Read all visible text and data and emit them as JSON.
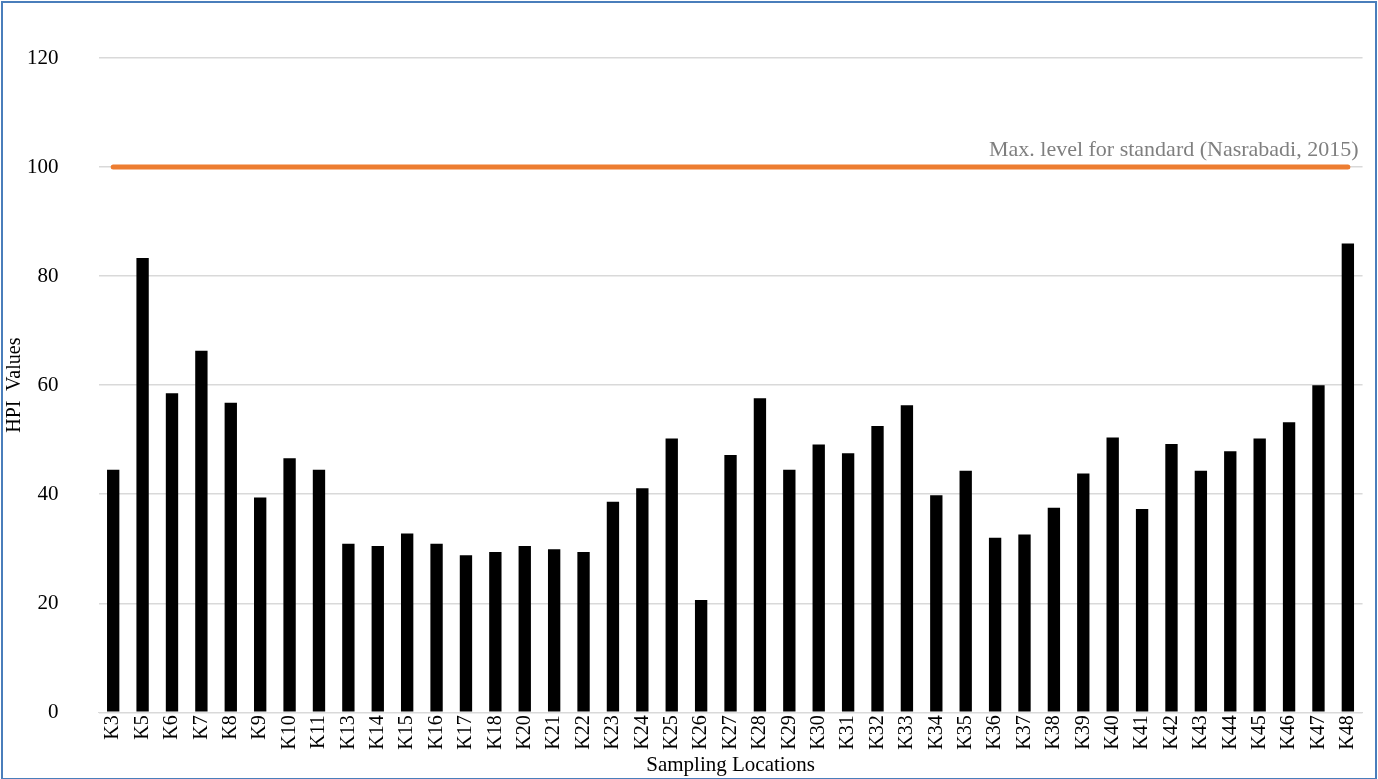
{
  "chart_data": {
    "type": "bar",
    "xlabel": "Sampling Locations",
    "ylabel": "HPI  Values",
    "categories": [
      "K3",
      "K5",
      "K6",
      "K7",
      "K8",
      "K9",
      "K10",
      "K11",
      "K13",
      "K14",
      "K15",
      "K16",
      "K17",
      "K18",
      "K20",
      "K21",
      "K22",
      "K23",
      "K24",
      "K25",
      "K26",
      "K27",
      "K28",
      "K29",
      "K30",
      "K31",
      "K32",
      "K33",
      "K34",
      "K35",
      "K36",
      "K37",
      "K38",
      "K39",
      "K40",
      "K41",
      "K42",
      "K43",
      "K44",
      "K45",
      "K46",
      "K47",
      "K48"
    ],
    "values": [
      44.5,
      83.3,
      58.5,
      66.3,
      56.8,
      39.4,
      46.6,
      44.5,
      30.9,
      30.5,
      32.8,
      30.9,
      28.8,
      29.4,
      30.5,
      29.9,
      29.4,
      38.6,
      41.1,
      50.2,
      20.6,
      47.2,
      57.6,
      44.5,
      49.1,
      47.5,
      52.5,
      56.3,
      39.8,
      44.3,
      32.0,
      32.6,
      37.5,
      43.8,
      50.4,
      37.3,
      49.2,
      44.3,
      47.9,
      50.2,
      53.2,
      60.0,
      86.0
    ],
    "color": "#000000",
    "ylim": [
      0,
      120
    ],
    "yticks": [
      0,
      20,
      40,
      60,
      80,
      100,
      120
    ],
    "grid": "y",
    "legend": false,
    "ref_lines": [
      {
        "axis": "y",
        "value": 100,
        "label": "Max. level for standard (Nasrabadi, 2015)",
        "color": "#ed7d31"
      }
    ]
  }
}
